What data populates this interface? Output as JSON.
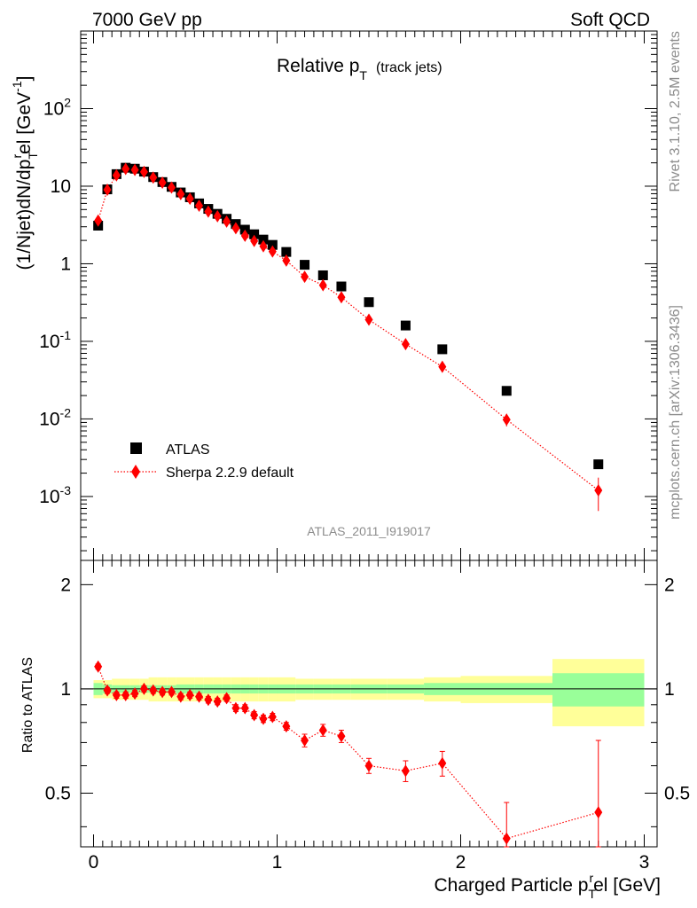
{
  "header": {
    "left": "7000 GeV pp",
    "right": "Soft QCD"
  },
  "side_labels": {
    "top": "Rivet 3.1.10,  2.5M events",
    "bottom": "mcplots.cern.ch [arXiv:1306.3436]"
  },
  "colors": {
    "data": "#000000",
    "mc": "#ff0000",
    "band_inner": "#99ff99",
    "band_outer": "#ffff99"
  },
  "chart_data": [
    {
      "type": "scatter",
      "title": "Relative p_T (track jets)",
      "title_main": "Relative p",
      "title_sub": "T",
      "title_tail": "(track jets)",
      "xlabel": "Charged Particle p_T^rel [GeV]",
      "xlabel_main": "Charged Particle p",
      "xlabel_sub": "T",
      "xlabel_sup": "r",
      "xlabel_tail": "el [GeV]",
      "ylabel": "(1/Njet)dN/dp_T^rel [GeV^-1]",
      "ylabel_text": "(1/Njet)dN/dp",
      "ylabel_sub": "T",
      "ylabel_sup": "r",
      "ylabel_tail": "el [GeV",
      "ylabel_exp": "-1",
      "ylabel_close": "]",
      "watermark": "ATLAS_2011_I919017",
      "xlim": [
        -0.07,
        3.07
      ],
      "ylim": [
        0.00015,
        1000
      ],
      "yscale": "log",
      "legend_position": "bottom-left",
      "yticks": [
        {
          "label": "10",
          "exp": "-3"
        },
        {
          "label": "10",
          "exp": "-2"
        },
        {
          "label": "10",
          "exp": "-1"
        },
        {
          "label": "1",
          "exp": ""
        },
        {
          "label": "10",
          "exp": ""
        },
        {
          "label": "10",
          "exp": "2"
        }
      ],
      "series": [
        {
          "name": "ATLAS",
          "marker": "square",
          "x": [
            0.025,
            0.075,
            0.125,
            0.175,
            0.225,
            0.275,
            0.325,
            0.375,
            0.425,
            0.475,
            0.525,
            0.575,
            0.625,
            0.675,
            0.725,
            0.775,
            0.825,
            0.875,
            0.925,
            0.975,
            1.05,
            1.15,
            1.25,
            1.35,
            1.5,
            1.7,
            1.9,
            2.25,
            2.75
          ],
          "y": [
            3.1,
            9.1,
            14.3,
            17.3,
            16.8,
            15.4,
            13.1,
            11.3,
            9.8,
            8.3,
            7.2,
            6.0,
            5.1,
            4.4,
            3.8,
            3.25,
            2.75,
            2.4,
            2.05,
            1.75,
            1.42,
            0.97,
            0.71,
            0.51,
            0.32,
            0.16,
            0.079,
            0.023,
            0.0026
          ],
          "yerr_lo": [
            0,
            0,
            0,
            0,
            0,
            0,
            0,
            0,
            0,
            0,
            0,
            0,
            0,
            0,
            0,
            0,
            0,
            0,
            0,
            0,
            0,
            0,
            0,
            0,
            0,
            0,
            0,
            0,
            0
          ],
          "yerr_hi": [
            0,
            0,
            0,
            0,
            0,
            0,
            0,
            0,
            0,
            0,
            0,
            0,
            0,
            0,
            0,
            0,
            0,
            0,
            0,
            0,
            0,
            0,
            0,
            0,
            0,
            0,
            0,
            0,
            0
          ]
        },
        {
          "name": "Sherpa 2.2.9 default",
          "marker": "diamond",
          "line": "dotted",
          "x": [
            0.025,
            0.075,
            0.125,
            0.175,
            0.225,
            0.275,
            0.325,
            0.375,
            0.425,
            0.475,
            0.525,
            0.575,
            0.625,
            0.675,
            0.725,
            0.775,
            0.825,
            0.875,
            0.925,
            0.975,
            1.05,
            1.15,
            1.25,
            1.35,
            1.5,
            1.7,
            1.9,
            2.25,
            2.75
          ],
          "y": [
            3.6,
            9.0,
            13.8,
            16.7,
            16.2,
            15.3,
            12.9,
            11.1,
            9.6,
            7.9,
            6.9,
            5.6,
            4.7,
            4.1,
            3.5,
            2.87,
            2.3,
            1.97,
            1.68,
            1.44,
            1.1,
            0.68,
            0.53,
            0.37,
            0.19,
            0.092,
            0.047,
            0.0098,
            0.0012
          ],
          "yerr_lo": [
            0.2,
            0.3,
            0.4,
            0.4,
            0.4,
            0.4,
            0.3,
            0.3,
            0.3,
            0.2,
            0.2,
            0.2,
            0.15,
            0.12,
            0.1,
            0.09,
            0.08,
            0.07,
            0.06,
            0.05,
            0.04,
            0.03,
            0.025,
            0.02,
            0.012,
            0.007,
            0.004,
            0.0018,
            0.00055
          ],
          "yerr_hi": [
            0.2,
            0.3,
            0.4,
            0.4,
            0.4,
            0.4,
            0.3,
            0.3,
            0.3,
            0.2,
            0.2,
            0.2,
            0.15,
            0.12,
            0.1,
            0.09,
            0.08,
            0.07,
            0.06,
            0.05,
            0.04,
            0.03,
            0.025,
            0.02,
            0.012,
            0.007,
            0.004,
            0.0018,
            0.00055
          ]
        }
      ]
    },
    {
      "type": "scatter",
      "ylabel": "Ratio to ATLAS",
      "xlim": [
        -0.07,
        3.07
      ],
      "ylim": [
        0.35,
        2.35
      ],
      "yscale": "log",
      "yticks": [
        0.5,
        1,
        2
      ],
      "xticks": [
        0,
        1,
        2,
        3
      ],
      "reference_line": 1,
      "bands": {
        "edges": [
          0.0,
          0.05,
          0.1,
          0.15,
          0.2,
          0.25,
          0.3,
          0.35,
          0.4,
          0.45,
          0.5,
          0.55,
          0.6,
          0.65,
          0.7,
          0.75,
          0.8,
          0.85,
          0.9,
          0.95,
          1.0,
          1.1,
          1.2,
          1.3,
          1.4,
          1.6,
          1.8,
          2.0,
          2.5,
          3.0
        ],
        "inner": [
          0.04,
          0.03,
          0.025,
          0.025,
          0.025,
          0.025,
          0.025,
          0.025,
          0.025,
          0.03,
          0.03,
          0.03,
          0.03,
          0.03,
          0.03,
          0.03,
          0.03,
          0.03,
          0.03,
          0.03,
          0.03,
          0.03,
          0.03,
          0.03,
          0.03,
          0.03,
          0.04,
          0.04,
          0.11
        ],
        "outer": [
          0.06,
          0.06,
          0.07,
          0.07,
          0.07,
          0.07,
          0.08,
          0.08,
          0.08,
          0.08,
          0.08,
          0.08,
          0.08,
          0.08,
          0.08,
          0.08,
          0.08,
          0.08,
          0.08,
          0.08,
          0.08,
          0.07,
          0.07,
          0.07,
          0.07,
          0.07,
          0.08,
          0.09,
          0.22
        ]
      },
      "series": [
        {
          "name": "Sherpa 2.2.9 default",
          "marker": "diamond",
          "line": "dotted",
          "x": [
            0.025,
            0.075,
            0.125,
            0.175,
            0.225,
            0.275,
            0.325,
            0.375,
            0.425,
            0.475,
            0.525,
            0.575,
            0.625,
            0.675,
            0.725,
            0.775,
            0.825,
            0.875,
            0.925,
            0.975,
            1.05,
            1.15,
            1.25,
            1.35,
            1.5,
            1.7,
            1.9,
            2.25,
            2.75
          ],
          "y": [
            1.16,
            0.99,
            0.96,
            0.96,
            0.97,
            1.0,
            0.99,
            0.98,
            0.98,
            0.95,
            0.96,
            0.95,
            0.93,
            0.92,
            0.94,
            0.88,
            0.88,
            0.84,
            0.82,
            0.83,
            0.78,
            0.71,
            0.76,
            0.73,
            0.6,
            0.58,
            0.61,
            0.37,
            0.44
          ],
          "yerr_lo": [
            0.02,
            0.02,
            0.02,
            0.02,
            0.02,
            0.02,
            0.02,
            0.02,
            0.02,
            0.02,
            0.02,
            0.02,
            0.02,
            0.02,
            0.02,
            0.02,
            0.02,
            0.02,
            0.02,
            0.02,
            0.02,
            0.03,
            0.03,
            0.03,
            0.03,
            0.04,
            0.05,
            0.04,
            0.12
          ],
          "yerr_hi": [
            0.02,
            0.02,
            0.02,
            0.02,
            0.02,
            0.02,
            0.02,
            0.02,
            0.02,
            0.02,
            0.02,
            0.02,
            0.02,
            0.02,
            0.02,
            0.02,
            0.02,
            0.02,
            0.02,
            0.02,
            0.02,
            0.03,
            0.03,
            0.03,
            0.03,
            0.04,
            0.05,
            0.1,
            0.27
          ]
        }
      ]
    }
  ]
}
